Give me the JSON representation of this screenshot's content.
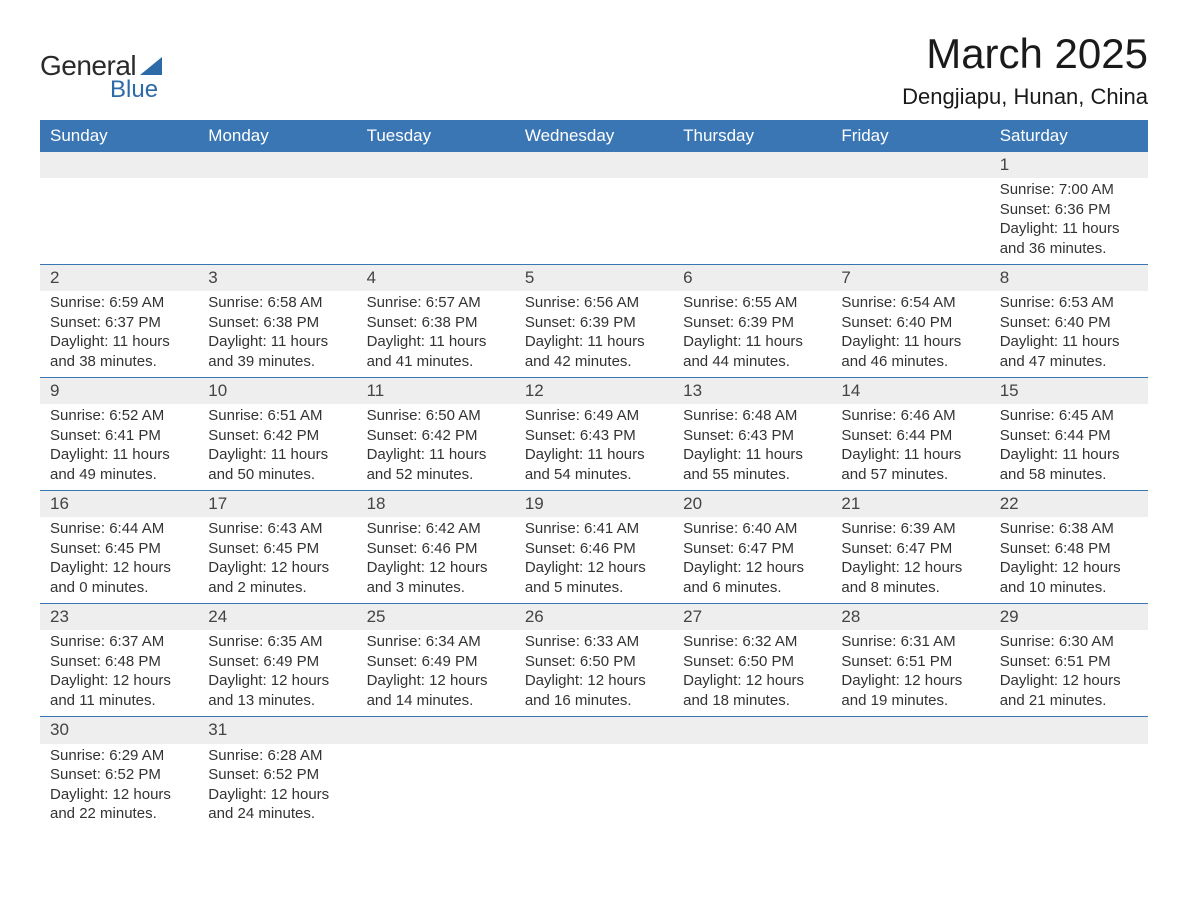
{
  "logo": {
    "general": "General",
    "blue": "Blue"
  },
  "title": "March 2025",
  "subtitle": "Dengjiapu, Hunan, China",
  "colors": {
    "header_bg": "#3a76b4",
    "header_fg": "#ffffff",
    "row_divider": "#3a76b4",
    "daynum_bg": "#eeeeee",
    "text": "#333333",
    "logo_blue": "#2e6aa8",
    "page_bg": "#ffffff"
  },
  "typography": {
    "title_fontsize": 42,
    "subtitle_fontsize": 22,
    "header_fontsize": 17,
    "daynum_fontsize": 17,
    "body_fontsize": 15,
    "font_family": "Arial"
  },
  "layout": {
    "columns": 7,
    "first_day_column_index": 6,
    "days_in_month": 31
  },
  "day_labels": [
    "Sunday",
    "Monday",
    "Tuesday",
    "Wednesday",
    "Thursday",
    "Friday",
    "Saturday"
  ],
  "days": [
    {
      "n": 1,
      "sunrise": "7:00 AM",
      "sunset": "6:36 PM",
      "daylight": "11 hours and 36 minutes."
    },
    {
      "n": 2,
      "sunrise": "6:59 AM",
      "sunset": "6:37 PM",
      "daylight": "11 hours and 38 minutes."
    },
    {
      "n": 3,
      "sunrise": "6:58 AM",
      "sunset": "6:38 PM",
      "daylight": "11 hours and 39 minutes."
    },
    {
      "n": 4,
      "sunrise": "6:57 AM",
      "sunset": "6:38 PM",
      "daylight": "11 hours and 41 minutes."
    },
    {
      "n": 5,
      "sunrise": "6:56 AM",
      "sunset": "6:39 PM",
      "daylight": "11 hours and 42 minutes."
    },
    {
      "n": 6,
      "sunrise": "6:55 AM",
      "sunset": "6:39 PM",
      "daylight": "11 hours and 44 minutes."
    },
    {
      "n": 7,
      "sunrise": "6:54 AM",
      "sunset": "6:40 PM",
      "daylight": "11 hours and 46 minutes."
    },
    {
      "n": 8,
      "sunrise": "6:53 AM",
      "sunset": "6:40 PM",
      "daylight": "11 hours and 47 minutes."
    },
    {
      "n": 9,
      "sunrise": "6:52 AM",
      "sunset": "6:41 PM",
      "daylight": "11 hours and 49 minutes."
    },
    {
      "n": 10,
      "sunrise": "6:51 AM",
      "sunset": "6:42 PM",
      "daylight": "11 hours and 50 minutes."
    },
    {
      "n": 11,
      "sunrise": "6:50 AM",
      "sunset": "6:42 PM",
      "daylight": "11 hours and 52 minutes."
    },
    {
      "n": 12,
      "sunrise": "6:49 AM",
      "sunset": "6:43 PM",
      "daylight": "11 hours and 54 minutes."
    },
    {
      "n": 13,
      "sunrise": "6:48 AM",
      "sunset": "6:43 PM",
      "daylight": "11 hours and 55 minutes."
    },
    {
      "n": 14,
      "sunrise": "6:46 AM",
      "sunset": "6:44 PM",
      "daylight": "11 hours and 57 minutes."
    },
    {
      "n": 15,
      "sunrise": "6:45 AM",
      "sunset": "6:44 PM",
      "daylight": "11 hours and 58 minutes."
    },
    {
      "n": 16,
      "sunrise": "6:44 AM",
      "sunset": "6:45 PM",
      "daylight": "12 hours and 0 minutes."
    },
    {
      "n": 17,
      "sunrise": "6:43 AM",
      "sunset": "6:45 PM",
      "daylight": "12 hours and 2 minutes."
    },
    {
      "n": 18,
      "sunrise": "6:42 AM",
      "sunset": "6:46 PM",
      "daylight": "12 hours and 3 minutes."
    },
    {
      "n": 19,
      "sunrise": "6:41 AM",
      "sunset": "6:46 PM",
      "daylight": "12 hours and 5 minutes."
    },
    {
      "n": 20,
      "sunrise": "6:40 AM",
      "sunset": "6:47 PM",
      "daylight": "12 hours and 6 minutes."
    },
    {
      "n": 21,
      "sunrise": "6:39 AM",
      "sunset": "6:47 PM",
      "daylight": "12 hours and 8 minutes."
    },
    {
      "n": 22,
      "sunrise": "6:38 AM",
      "sunset": "6:48 PM",
      "daylight": "12 hours and 10 minutes."
    },
    {
      "n": 23,
      "sunrise": "6:37 AM",
      "sunset": "6:48 PM",
      "daylight": "12 hours and 11 minutes."
    },
    {
      "n": 24,
      "sunrise": "6:35 AM",
      "sunset": "6:49 PM",
      "daylight": "12 hours and 13 minutes."
    },
    {
      "n": 25,
      "sunrise": "6:34 AM",
      "sunset": "6:49 PM",
      "daylight": "12 hours and 14 minutes."
    },
    {
      "n": 26,
      "sunrise": "6:33 AM",
      "sunset": "6:50 PM",
      "daylight": "12 hours and 16 minutes."
    },
    {
      "n": 27,
      "sunrise": "6:32 AM",
      "sunset": "6:50 PM",
      "daylight": "12 hours and 18 minutes."
    },
    {
      "n": 28,
      "sunrise": "6:31 AM",
      "sunset": "6:51 PM",
      "daylight": "12 hours and 19 minutes."
    },
    {
      "n": 29,
      "sunrise": "6:30 AM",
      "sunset": "6:51 PM",
      "daylight": "12 hours and 21 minutes."
    },
    {
      "n": 30,
      "sunrise": "6:29 AM",
      "sunset": "6:52 PM",
      "daylight": "12 hours and 22 minutes."
    },
    {
      "n": 31,
      "sunrise": "6:28 AM",
      "sunset": "6:52 PM",
      "daylight": "12 hours and 24 minutes."
    }
  ],
  "labels": {
    "sunrise_prefix": "Sunrise: ",
    "sunset_prefix": "Sunset: ",
    "daylight_prefix": "Daylight: "
  }
}
